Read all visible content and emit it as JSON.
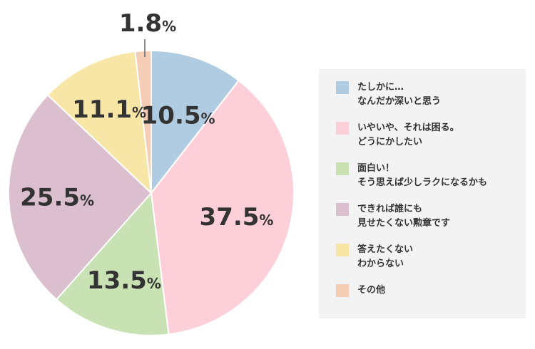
{
  "chart_data": {
    "type": "pie",
    "unit": "%",
    "slices": [
      {
        "label": "たしかに…\nなんだか深いと思う",
        "value": 10.5,
        "display": "10.5",
        "color": "#b0cce2"
      },
      {
        "label": "いやいや、それは困る。\nどうにかしたい",
        "value": 37.5,
        "display": "37.5",
        "color": "#fdd0d9"
      },
      {
        "label": "面白い！\nそう思えば少しラクになるかも",
        "value": 13.5,
        "display": "13.5",
        "color": "#c8e2b4"
      },
      {
        "label": "できれば誰にも\n見せたくない勲章です",
        "value": 25.5,
        "display": "25.5",
        "color": "#dbbfce"
      },
      {
        "label": "答えたくない\nわからない",
        "value": 11.1,
        "display": "11.1",
        "color": "#f7e6a6"
      },
      {
        "label": "その他",
        "value": 1.8,
        "display": "1.8",
        "color": "#f5ccb4"
      }
    ],
    "start_angle": "12 o'clock",
    "direction": "clockwise",
    "legend_position": "right"
  }
}
